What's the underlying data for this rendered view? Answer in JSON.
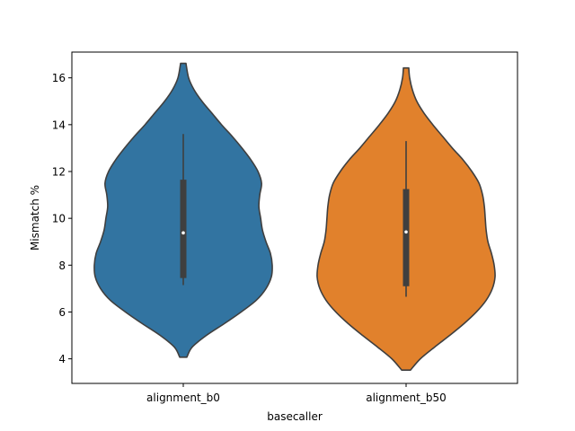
{
  "chart_data": {
    "type": "violin",
    "title": "",
    "xlabel": "basecaller",
    "ylabel": "Mismatch %",
    "ylim": [
      2.95,
      17.1
    ],
    "yticks": [
      4,
      6,
      8,
      10,
      12,
      14,
      16
    ],
    "ytick_labels": [
      "4",
      "6",
      "8",
      "10",
      "12",
      "14",
      "16"
    ],
    "categories": [
      "alignment_b0",
      "alignment_b50"
    ],
    "grid": false,
    "violins": [
      {
        "category": "alignment_b0",
        "color": "#3274a1",
        "min": 4.07,
        "max": 16.62,
        "median": 9.38,
        "q1": 7.45,
        "q3": 11.65,
        "whisker_low": 7.15,
        "whisker_high": 13.6,
        "density": [
          [
            4.07,
            0.04
          ],
          [
            4.5,
            0.1
          ],
          [
            5.0,
            0.26
          ],
          [
            5.5,
            0.46
          ],
          [
            6.0,
            0.65
          ],
          [
            6.5,
            0.82
          ],
          [
            7.0,
            0.93
          ],
          [
            7.5,
            0.99
          ],
          [
            8.0,
            1.0
          ],
          [
            8.5,
            0.98
          ],
          [
            9.0,
            0.93
          ],
          [
            9.5,
            0.89
          ],
          [
            10.0,
            0.87
          ],
          [
            10.5,
            0.85
          ],
          [
            11.0,
            0.86
          ],
          [
            11.5,
            0.88
          ],
          [
            12.0,
            0.84
          ],
          [
            12.5,
            0.76
          ],
          [
            13.0,
            0.66
          ],
          [
            13.5,
            0.55
          ],
          [
            14.0,
            0.43
          ],
          [
            14.5,
            0.32
          ],
          [
            15.0,
            0.21
          ],
          [
            15.5,
            0.12
          ],
          [
            16.0,
            0.06
          ],
          [
            16.62,
            0.03
          ]
        ]
      },
      {
        "category": "alignment_b50",
        "color": "#e1812c",
        "min": 3.52,
        "max": 16.42,
        "median": 9.42,
        "q1": 7.1,
        "q3": 11.25,
        "whisker_low": 6.65,
        "whisker_high": 13.3,
        "density": [
          [
            3.52,
            0.05
          ],
          [
            4.0,
            0.16
          ],
          [
            4.5,
            0.32
          ],
          [
            5.0,
            0.49
          ],
          [
            5.5,
            0.65
          ],
          [
            6.0,
            0.79
          ],
          [
            6.5,
            0.9
          ],
          [
            7.0,
            0.97
          ],
          [
            7.5,
            1.0
          ],
          [
            8.0,
            0.99
          ],
          [
            8.5,
            0.96
          ],
          [
            9.0,
            0.92
          ],
          [
            9.5,
            0.9
          ],
          [
            10.0,
            0.89
          ],
          [
            10.5,
            0.88
          ],
          [
            11.0,
            0.86
          ],
          [
            11.5,
            0.82
          ],
          [
            12.0,
            0.74
          ],
          [
            12.5,
            0.64
          ],
          [
            13.0,
            0.52
          ],
          [
            13.5,
            0.41
          ],
          [
            14.0,
            0.3
          ],
          [
            14.5,
            0.2
          ],
          [
            15.0,
            0.12
          ],
          [
            15.5,
            0.07
          ],
          [
            16.0,
            0.04
          ],
          [
            16.42,
            0.03
          ]
        ]
      }
    ]
  }
}
